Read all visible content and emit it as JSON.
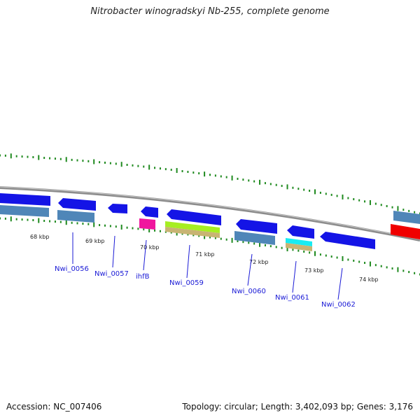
{
  "title": "Nitrobacter winogradskyi Nb-255, complete genome",
  "footer": {
    "accession": "Accession: NC_007406",
    "summary": "Topology: circular; Length: 3,402,093 bp; Genes: 3,176"
  },
  "colors": {
    "backbone": "#8c8c8c",
    "tick": "#1f8a1f",
    "gene": "#1414e6",
    "cds": "#4f86b8",
    "pink": "#f0169e",
    "lime": "#a6ee22",
    "tan": "#c8b473",
    "cyan": "#18ecf2",
    "red": "#f00000",
    "label": "#1a1ad6"
  },
  "scale_labels": [
    "68 kbp",
    "69 kbp",
    "70 kbp",
    "71 kbp",
    "72 kbp",
    "73 kbp",
    "74 kbp"
  ],
  "gene_labels": [
    "Nwi_0056",
    "Nwi_0057",
    "ihfB",
    "Nwi_0059",
    "Nwi_0060",
    "Nwi_0061",
    "Nwi_0062"
  ]
}
